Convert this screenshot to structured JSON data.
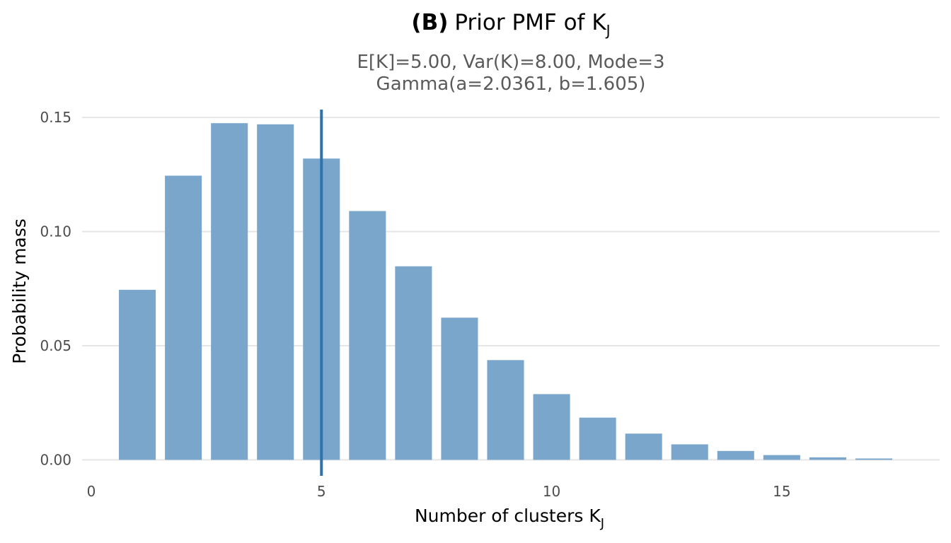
{
  "title": {
    "bold_prefix": "(B)",
    "text": "Prior PMF of K",
    "subscript": "J"
  },
  "subtitle": {
    "line1": "E[K]=5.00,  Var(K)=8.00,  Mode=3",
    "line2": "Gamma(a=2.0361, b=1.605)"
  },
  "axes": {
    "xlabel": "Number of clusters K",
    "xlabel_subscript": "J",
    "ylabel": "Probability mass"
  },
  "colors": {
    "bar": "#7aa6cb",
    "vline": "#2f73ab",
    "grid": "#e6e6e6"
  },
  "chart_data": {
    "type": "bar",
    "title": "(B) Prior PMF of K_J",
    "subtitle": "E[K]=5.00,  Var(K)=8.00,  Mode=3 / Gamma(a=2.0361, b=1.605)",
    "xlabel": "Number of clusters K_J",
    "ylabel": "Probability mass",
    "x": [
      1,
      2,
      3,
      4,
      5,
      6,
      7,
      8,
      9,
      10,
      11,
      12,
      13,
      14,
      15,
      16,
      17
    ],
    "values": [
      0.0745,
      0.1245,
      0.1475,
      0.147,
      0.132,
      0.109,
      0.0848,
      0.0623,
      0.0437,
      0.0288,
      0.0185,
      0.0115,
      0.0068,
      0.0039,
      0.0021,
      0.0011,
      0.0006
    ],
    "vline": {
      "x": 5,
      "label": "E[K]"
    },
    "xlim": [
      0,
      18
    ],
    "ylim": [
      -0.007,
      0.155
    ],
    "xticks": [
      0,
      5,
      10,
      15
    ],
    "xtick_labels": [
      "0",
      "5",
      "10",
      "15"
    ],
    "yticks": [
      0,
      0.05,
      0.1,
      0.15
    ],
    "ytick_labels": [
      "0.00",
      "0.05",
      "0.10",
      "0.15"
    ],
    "grid": "horizontal",
    "legend": "none"
  }
}
